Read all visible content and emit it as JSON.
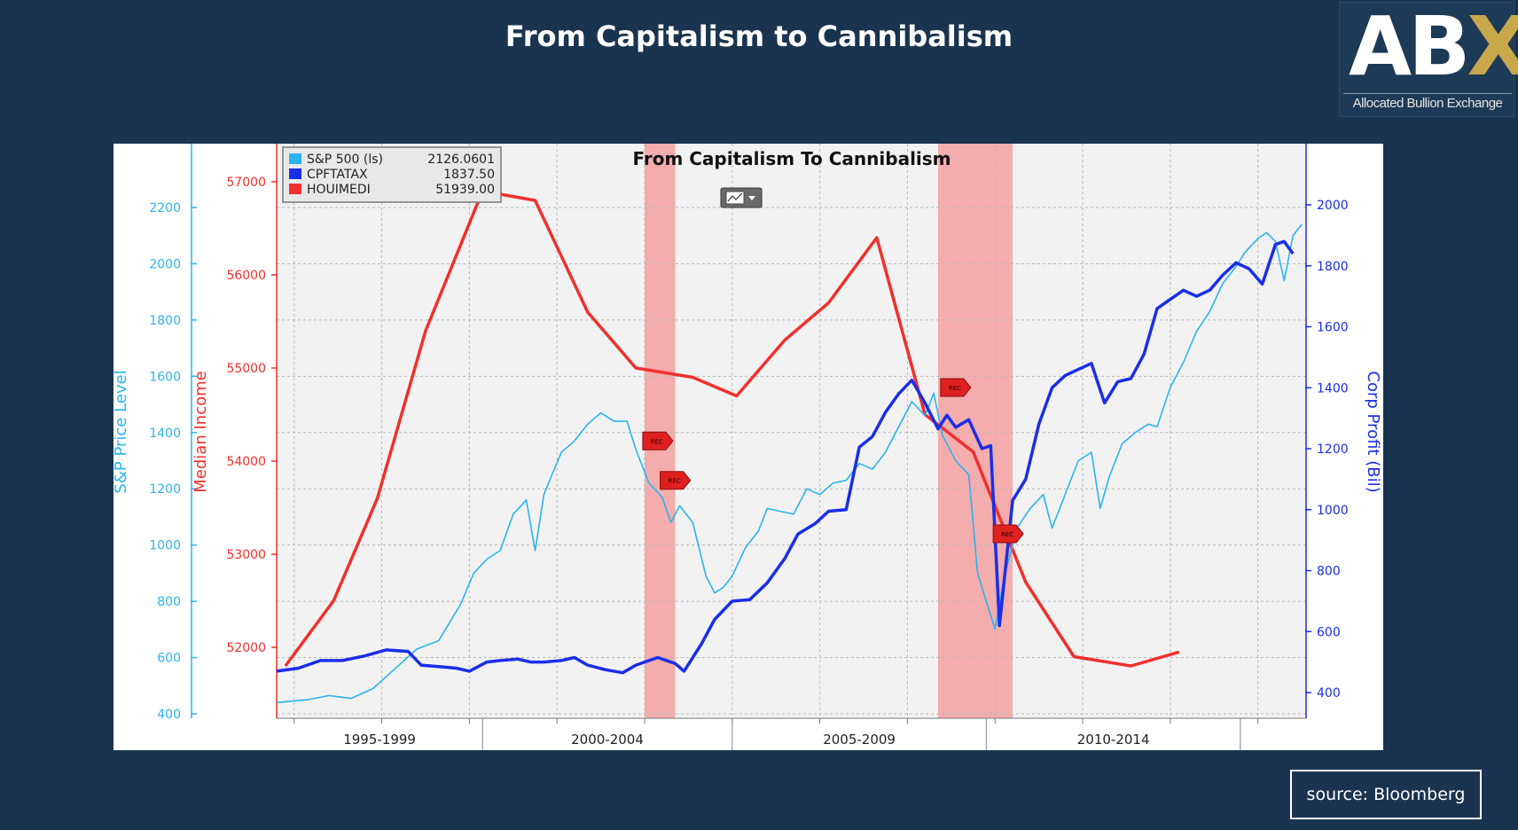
{
  "slide": {
    "title": "From Capitalism to Cannibalism",
    "logo_main": "ABX",
    "logo_sub": "Allocated Bullion Exchange",
    "source": "source: Bloomberg"
  },
  "colors": {
    "background": "#1a3450",
    "sp500": "#2ab4f0",
    "cpftatax": "#1a2ee8",
    "houimedi": "#f0302c",
    "recession": "#f4a0a0",
    "plot_bg": "#f2f2f2"
  },
  "chart_data": {
    "type": "line",
    "title": "From Capitalism To Cannibalism",
    "x_range": [
      1992.8,
      2016.3
    ],
    "x_period_labels": [
      "1995-1999",
      "2000-2004",
      "2005-2009",
      "2010-2014"
    ],
    "x_period_dividers": [
      1997.5,
      2003.2,
      2009.0,
      2014.8
    ],
    "axes": {
      "sp500": {
        "label": "S&P Price Level",
        "range": [
          400,
          2200
        ],
        "ticks": [
          400,
          600,
          800,
          1000,
          1200,
          1400,
          1600,
          1800,
          2000,
          2200
        ]
      },
      "median_income": {
        "label": "Median Income",
        "range": [
          51700,
          57000
        ],
        "ticks": [
          52000,
          53000,
          54000,
          55000,
          56000,
          57000
        ]
      },
      "corp_profit": {
        "label": "Corp Profit (Bil)",
        "range": [
          400,
          2000
        ],
        "ticks": [
          400,
          600,
          800,
          1000,
          1200,
          1400,
          1600,
          1800,
          2000
        ]
      }
    },
    "legend": [
      {
        "name": "S&P 500 (ls)",
        "value": "2126.0601"
      },
      {
        "name": "CPFTATAX",
        "value": "1837.50"
      },
      {
        "name": "HOUIMEDI",
        "value": "51939.00"
      }
    ],
    "recession_bands": [
      [
        2001.2,
        2001.9
      ],
      [
        2007.9,
        2009.6
      ]
    ],
    "rec_marker_text": "REC",
    "rec_markers": [
      {
        "x": 2001.4,
        "series": "sp500",
        "y": 1370
      },
      {
        "x": 2001.8,
        "series": "sp500",
        "y": 1230
      },
      {
        "x": 2008.2,
        "series": "sp500",
        "y": 1560
      },
      {
        "x": 2009.4,
        "series": "sp500",
        "y": 1040
      }
    ],
    "series": [
      {
        "name": "S&P 500 (ls)",
        "axis": "sp500",
        "points": [
          [
            1992.8,
            440
          ],
          [
            1993.5,
            450
          ],
          [
            1994.0,
            465
          ],
          [
            1994.5,
            455
          ],
          [
            1995.0,
            490
          ],
          [
            1995.5,
            560
          ],
          [
            1996.0,
            630
          ],
          [
            1996.5,
            660
          ],
          [
            1997.0,
            790
          ],
          [
            1997.3,
            900
          ],
          [
            1997.6,
            950
          ],
          [
            1997.9,
            980
          ],
          [
            1998.2,
            1110
          ],
          [
            1998.5,
            1160
          ],
          [
            1998.7,
            980
          ],
          [
            1998.9,
            1180
          ],
          [
            1999.3,
            1330
          ],
          [
            1999.6,
            1370
          ],
          [
            1999.9,
            1430
          ],
          [
            2000.2,
            1470
          ],
          [
            2000.5,
            1440
          ],
          [
            2000.8,
            1440
          ],
          [
            2001.0,
            1340
          ],
          [
            2001.3,
            1220
          ],
          [
            2001.6,
            1170
          ],
          [
            2001.8,
            1080
          ],
          [
            2002.0,
            1140
          ],
          [
            2002.3,
            1080
          ],
          [
            2002.6,
            890
          ],
          [
            2002.8,
            830
          ],
          [
            2003.0,
            850
          ],
          [
            2003.2,
            890
          ],
          [
            2003.5,
            990
          ],
          [
            2003.8,
            1050
          ],
          [
            2004.0,
            1130
          ],
          [
            2004.3,
            1120
          ],
          [
            2004.6,
            1110
          ],
          [
            2004.9,
            1200
          ],
          [
            2005.2,
            1180
          ],
          [
            2005.5,
            1220
          ],
          [
            2005.8,
            1230
          ],
          [
            2006.1,
            1290
          ],
          [
            2006.4,
            1270
          ],
          [
            2006.7,
            1330
          ],
          [
            2007.0,
            1420
          ],
          [
            2007.3,
            1510
          ],
          [
            2007.6,
            1460
          ],
          [
            2007.8,
            1540
          ],
          [
            2008.0,
            1390
          ],
          [
            2008.3,
            1300
          ],
          [
            2008.6,
            1250
          ],
          [
            2008.8,
            900
          ],
          [
            2009.0,
            800
          ],
          [
            2009.2,
            700
          ],
          [
            2009.4,
            880
          ],
          [
            2009.7,
            1060
          ],
          [
            2010.0,
            1130
          ],
          [
            2010.3,
            1180
          ],
          [
            2010.5,
            1060
          ],
          [
            2010.8,
            1180
          ],
          [
            2011.1,
            1300
          ],
          [
            2011.4,
            1330
          ],
          [
            2011.6,
            1130
          ],
          [
            2011.8,
            1240
          ],
          [
            2012.1,
            1360
          ],
          [
            2012.4,
            1400
          ],
          [
            2012.7,
            1430
          ],
          [
            2012.9,
            1420
          ],
          [
            2013.2,
            1560
          ],
          [
            2013.5,
            1650
          ],
          [
            2013.8,
            1760
          ],
          [
            2014.1,
            1830
          ],
          [
            2014.4,
            1930
          ],
          [
            2014.7,
            1990
          ],
          [
            2014.9,
            2040
          ],
          [
            2015.2,
            2090
          ],
          [
            2015.4,
            2110
          ],
          [
            2015.6,
            2080
          ],
          [
            2015.8,
            1940
          ],
          [
            2016.0,
            2100
          ],
          [
            2016.2,
            2140
          ]
        ]
      },
      {
        "name": "CPFTATAX",
        "axis": "corp_profit",
        "points": [
          [
            1992.8,
            470
          ],
          [
            1993.3,
            480
          ],
          [
            1993.8,
            505
          ],
          [
            1994.3,
            505
          ],
          [
            1994.8,
            520
          ],
          [
            1995.3,
            540
          ],
          [
            1995.8,
            535
          ],
          [
            1996.1,
            490
          ],
          [
            1996.5,
            485
          ],
          [
            1996.9,
            480
          ],
          [
            1997.2,
            470
          ],
          [
            1997.6,
            500
          ],
          [
            1997.9,
            505
          ],
          [
            1998.3,
            510
          ],
          [
            1998.6,
            500
          ],
          [
            1998.9,
            500
          ],
          [
            1999.3,
            505
          ],
          [
            1999.6,
            515
          ],
          [
            1999.9,
            490
          ],
          [
            2000.3,
            475
          ],
          [
            2000.7,
            465
          ],
          [
            2001.0,
            490
          ],
          [
            2001.5,
            515
          ],
          [
            2001.9,
            495
          ],
          [
            2002.1,
            470
          ],
          [
            2002.5,
            560
          ],
          [
            2002.8,
            640
          ],
          [
            2003.2,
            700
          ],
          [
            2003.6,
            705
          ],
          [
            2004.0,
            760
          ],
          [
            2004.4,
            840
          ],
          [
            2004.7,
            920
          ],
          [
            2005.1,
            955
          ],
          [
            2005.4,
            995
          ],
          [
            2005.8,
            1000
          ],
          [
            2006.1,
            1205
          ],
          [
            2006.4,
            1240
          ],
          [
            2006.7,
            1320
          ],
          [
            2007.0,
            1380
          ],
          [
            2007.3,
            1425
          ],
          [
            2007.6,
            1350
          ],
          [
            2007.9,
            1265
          ],
          [
            2008.1,
            1310
          ],
          [
            2008.3,
            1270
          ],
          [
            2008.6,
            1295
          ],
          [
            2008.9,
            1200
          ],
          [
            2009.1,
            1210
          ],
          [
            2009.3,
            620
          ],
          [
            2009.6,
            1030
          ],
          [
            2009.9,
            1100
          ],
          [
            2010.2,
            1280
          ],
          [
            2010.5,
            1400
          ],
          [
            2010.8,
            1440
          ],
          [
            2011.1,
            1460
          ],
          [
            2011.4,
            1480
          ],
          [
            2011.7,
            1350
          ],
          [
            2012.0,
            1420
          ],
          [
            2012.3,
            1430
          ],
          [
            2012.6,
            1510
          ],
          [
            2012.9,
            1660
          ],
          [
            2013.2,
            1690
          ],
          [
            2013.5,
            1720
          ],
          [
            2013.8,
            1700
          ],
          [
            2014.1,
            1720
          ],
          [
            2014.4,
            1770
          ],
          [
            2014.7,
            1810
          ],
          [
            2015.0,
            1790
          ],
          [
            2015.3,
            1740
          ],
          [
            2015.6,
            1870
          ],
          [
            2015.8,
            1880
          ],
          [
            2016.0,
            1840
          ]
        ]
      },
      {
        "name": "HOUIMEDI",
        "axis": "median_income",
        "points": [
          [
            1993.0,
            51800
          ],
          [
            1994.1,
            52500
          ],
          [
            1995.1,
            53600
          ],
          [
            1996.2,
            55400
          ],
          [
            1997.5,
            56900
          ],
          [
            1998.7,
            56800
          ],
          [
            1999.9,
            55600
          ],
          [
            2001.0,
            55000
          ],
          [
            2002.3,
            54900
          ],
          [
            2003.3,
            54700
          ],
          [
            2004.4,
            55300
          ],
          [
            2005.4,
            55700
          ],
          [
            2006.5,
            56400
          ],
          [
            2007.6,
            54500
          ],
          [
            2008.7,
            54100
          ],
          [
            2009.9,
            52700
          ],
          [
            2011.0,
            51900
          ],
          [
            2012.3,
            51800
          ],
          [
            2013.4,
            51950
          ]
        ]
      }
    ]
  }
}
